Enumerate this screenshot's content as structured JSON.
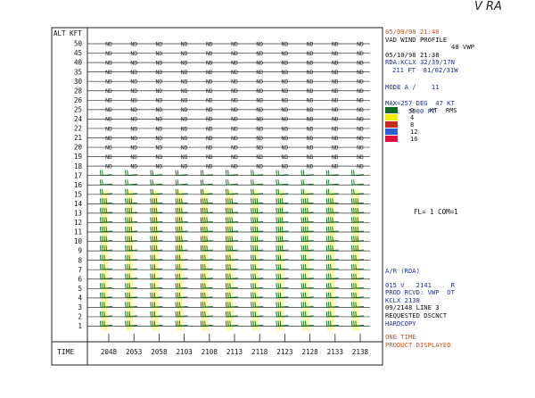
{
  "corner_mark": "V RA",
  "header_block": {
    "datetime_top": "05/09/98 21:40",
    "product": "VAD WIND PROFILE",
    "product_code": "48 VWP",
    "datetime_scan": "05/10/98 21:38",
    "rda_loc": "RDA:KCLX 32/39/17N",
    "rda_elev": "211 FT  81/02/31W",
    "mode": "MODE A /    11",
    "max_line": "MAX=257 DEG  47 KT",
    "alt_line": "ALT:  5000 FT"
  },
  "legend": {
    "header_kt": "KT",
    "header_rms": "RMS",
    "items": [
      {
        "label": "0",
        "color": "#0f6b1f"
      },
      {
        "label": "4",
        "color": "#f2f000"
      },
      {
        "label": "8",
        "color": "#c42a1c"
      },
      {
        "label": "12",
        "color": "#2a5fd6"
      },
      {
        "label": "16",
        "color": "#e0103a"
      }
    ]
  },
  "fl_status": "FL= 1 COM=1",
  "status_block": {
    "ar_line": "A/R (RDA)",
    "line_015": "015 V   2141     R",
    "prod_rcvd": "PROD RCVD: VWP  OT",
    "kclx": "KCLX 2138",
    "line3": "09/2148 LINE 3",
    "dscnct": "REQUESTED DSCNCT",
    "hardcopy": "HARDCOPY",
    "one_time": "ONE TIME",
    "product_displayed": "PRODUCT DISPLAYED"
  },
  "chart_data": {
    "type": "wind profile",
    "y_axis_label": "ALT KFT",
    "x_axis_label": "TIME",
    "altitudes_kft": [
      50,
      45,
      40,
      35,
      30,
      28,
      26,
      25,
      24,
      22,
      21,
      20,
      19,
      18,
      17,
      16,
      15,
      14,
      13,
      12,
      11,
      10,
      9,
      8,
      7,
      6,
      5,
      4,
      3,
      2,
      1
    ],
    "times": [
      "2048",
      "2053",
      "2058",
      "2103",
      "2108",
      "2113",
      "2118",
      "2123",
      "2128",
      "2133",
      "2138"
    ],
    "no_data_marker": "ND",
    "no_data_altitudes_kft": [
      50,
      45,
      40,
      35,
      30,
      28,
      26,
      25,
      24,
      22,
      21,
      20,
      19,
      18
    ],
    "wind_barb_color": "#0f6b1f",
    "rms_highlight_color": "#f2f000"
  }
}
